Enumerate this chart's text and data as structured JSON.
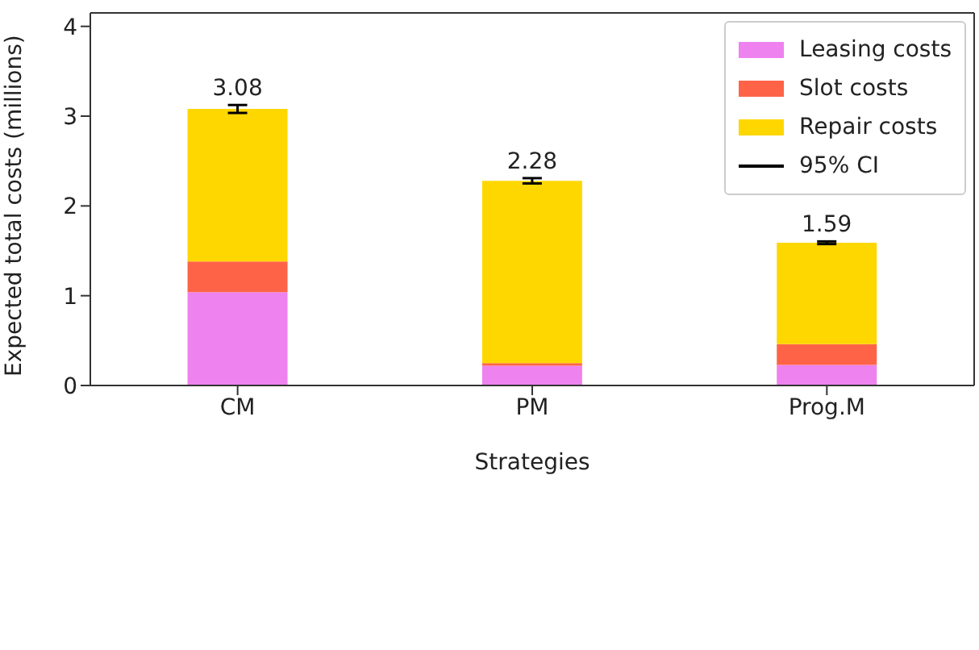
{
  "chart_data": {
    "type": "bar",
    "stacked": true,
    "xlabel": "Strategies",
    "ylabel": "Expected total costs (millions)",
    "categories": [
      "CM",
      "PM",
      "Prog.M"
    ],
    "series": [
      {
        "name": "Leasing costs",
        "color": "#ee82ee",
        "values": [
          1.04,
          0.22,
          0.23
        ]
      },
      {
        "name": "Slot costs",
        "color": "#ff6347",
        "values": [
          0.34,
          0.03,
          0.23
        ]
      },
      {
        "name": "Repair costs",
        "color": "#ffd700",
        "values": [
          1.7,
          2.03,
          1.13
        ],
        "errors": [
          0.03,
          0.02,
          0.01
        ]
      }
    ],
    "totals": [
      "3.08",
      "2.28",
      "1.59"
    ],
    "annotations": [
      "95% CI"
    ],
    "ylim": [
      0,
      4.15
    ],
    "yticks": [
      0,
      1,
      2,
      3,
      4
    ],
    "legend": "top right"
  }
}
